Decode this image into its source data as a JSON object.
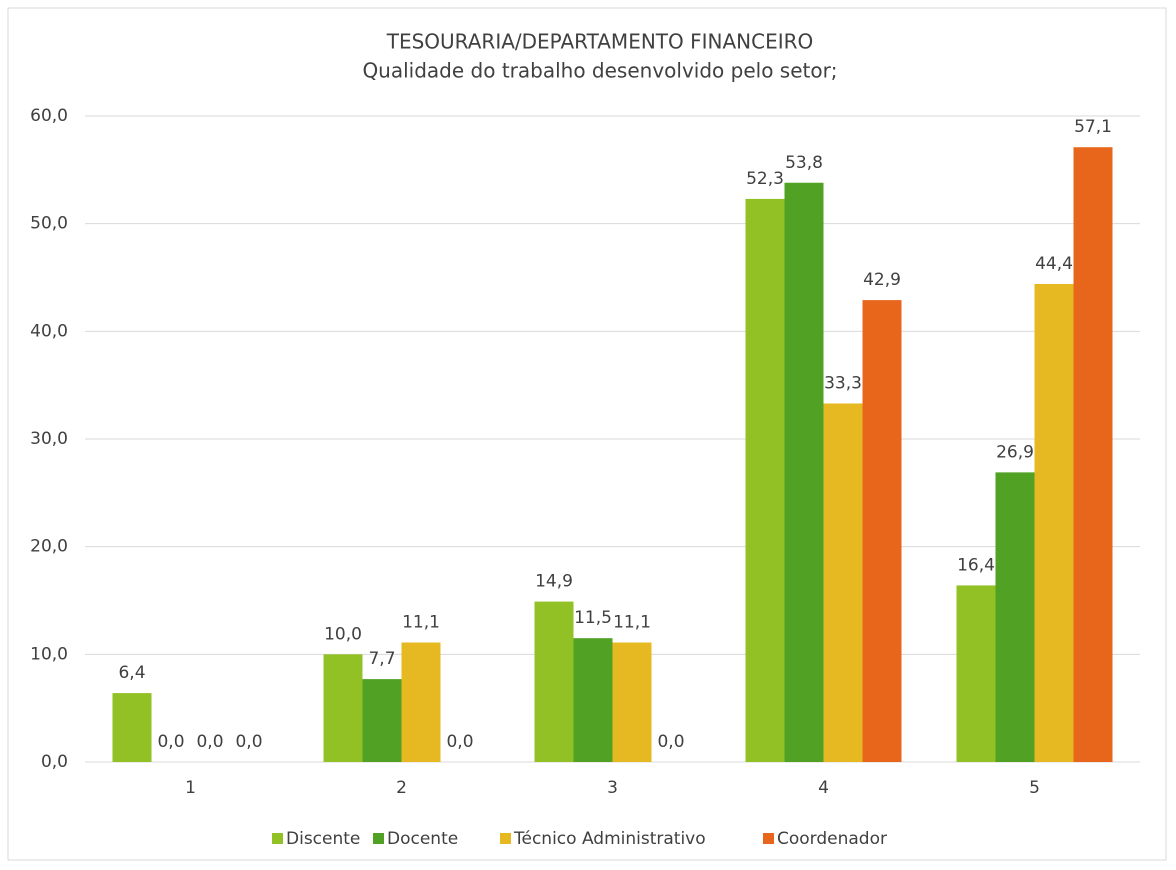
{
  "chart_data": {
    "type": "bar",
    "title": "TESOURARIA/DEPARTAMENTO FINANCEIRO",
    "subtitle": "Qualidade do trabalho desenvolvido pelo setor;",
    "categories": [
      "1",
      "2",
      "3",
      "4",
      "5"
    ],
    "series": [
      {
        "name": "Discente",
        "color": "#92c125",
        "values": [
          6.4,
          10.0,
          14.9,
          52.3,
          16.4
        ],
        "value_labels": [
          "6,4",
          "10,0",
          "14,9",
          "52,3",
          "16,4"
        ]
      },
      {
        "name": "Docente",
        "color": "#51a124",
        "values": [
          0.0,
          7.7,
          11.5,
          53.8,
          26.9
        ],
        "value_labels": [
          "0,0",
          "7,7",
          "11,5",
          "53,8",
          "26,9"
        ]
      },
      {
        "name": "Técnico Administrativo",
        "color": "#e6b922",
        "values": [
          0.0,
          11.1,
          11.1,
          33.3,
          44.4
        ],
        "value_labels": [
          "0,0",
          "11,1",
          "11,1",
          "33,3",
          "44,4"
        ]
      },
      {
        "name": "Coordenador",
        "color": "#e8661c",
        "values": [
          0.0,
          0.0,
          0.0,
          42.9,
          57.1
        ],
        "value_labels": [
          "0,0",
          "0,0",
          "0,0",
          "42,9",
          "57,1"
        ]
      }
    ],
    "ylim": [
      0,
      60
    ],
    "yticks": [
      {
        "value": 0,
        "label": "0,0"
      },
      {
        "value": 10,
        "label": "10,0"
      },
      {
        "value": 20,
        "label": "20,0"
      },
      {
        "value": 30,
        "label": "30,0"
      },
      {
        "value": 40,
        "label": "40,0"
      },
      {
        "value": 50,
        "label": "50,0"
      },
      {
        "value": 60,
        "label": "60,0"
      }
    ],
    "grid": true,
    "legend": "bottom"
  }
}
